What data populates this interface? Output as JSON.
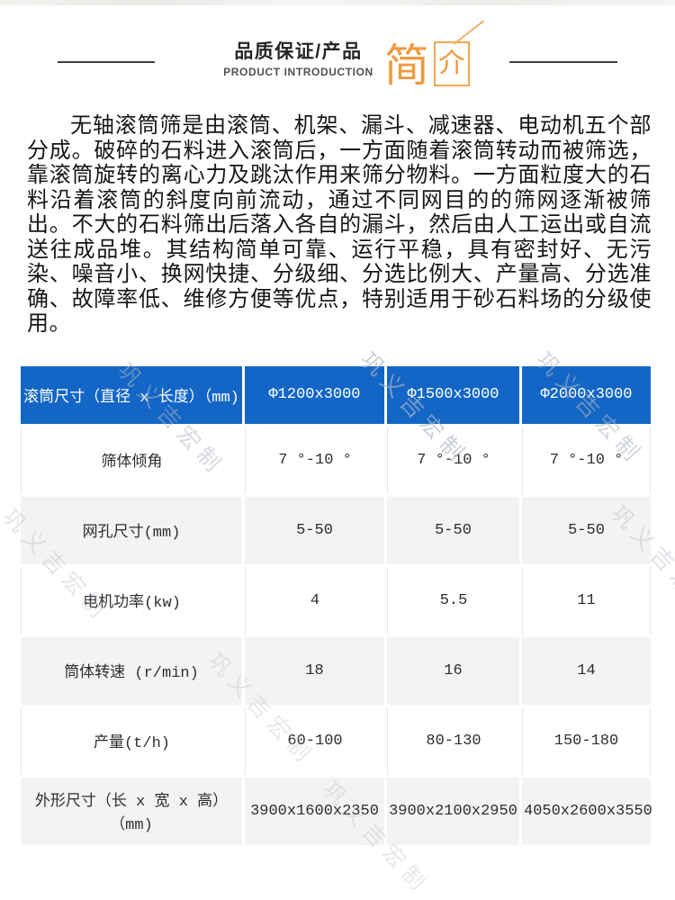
{
  "colors": {
    "accent_orange": "#ee9a40",
    "table_header_bg": "#1366c6",
    "table_alt_row_bg": "#f3f3f3",
    "rule_color": "#3d3d3d"
  },
  "header": {
    "title": "品质保证/产品",
    "subtitle": "PRODUCT INTRODUCTION",
    "logo": {
      "jian": "简",
      "jie": "介"
    }
  },
  "intro": {
    "text": "无轴滚筒筛是由滚筒、机架、漏斗、减速器、电动机五个部分成。破碎的石料进入滚筒后，一方面随着滚筒转动而被筛选，靠滚筒旋转的离心力及跳汰作用来筛分物料。一方面粒度大的石料沿着滚筒的斜度向前流动，通过不同网目的的筛网逐渐被筛出。不大的石料筛出后落入各自的漏斗，然后由人工运出或自流送往成品堆。其结构简单可靠、运行平稳，具有密封好、无污染、噪音小、换网快捷、分级细、分选比例大、产量高、分选准确、故障率低、维修方便等优点，特别适用于砂石料场的分级使用。"
  },
  "watermark": {
    "text": "巩义吉宏制"
  },
  "spec_table": {
    "header": {
      "label": "滚筒尺寸（直径 x 长度）（mm)",
      "values": [
        "Φ1200x3000",
        "Φ1500x3000",
        "Φ2000x3000"
      ]
    },
    "rows": [
      {
        "label": "筛体倾角",
        "values": [
          "7 °-10 °",
          "7 °-10 °",
          "7 °-10 °"
        ]
      },
      {
        "label": "网孔尺寸(mm)",
        "values": [
          "5-50",
          "5-50",
          "5-50"
        ]
      },
      {
        "label": "电机功率(kw)",
        "values": [
          "4",
          "5.5",
          "11"
        ]
      },
      {
        "label": "筒体转速 (r/min)",
        "values": [
          "18",
          "16",
          "14"
        ]
      },
      {
        "label": "产量(t/h)",
        "values": [
          "60-100",
          "80-130",
          "150-180"
        ]
      },
      {
        "label": "外形尺寸（长 x 宽 x 高）（mm)",
        "values": [
          "3900x1600x2350",
          "3900x2100x2950",
          "4050x2600x3550"
        ]
      }
    ]
  }
}
